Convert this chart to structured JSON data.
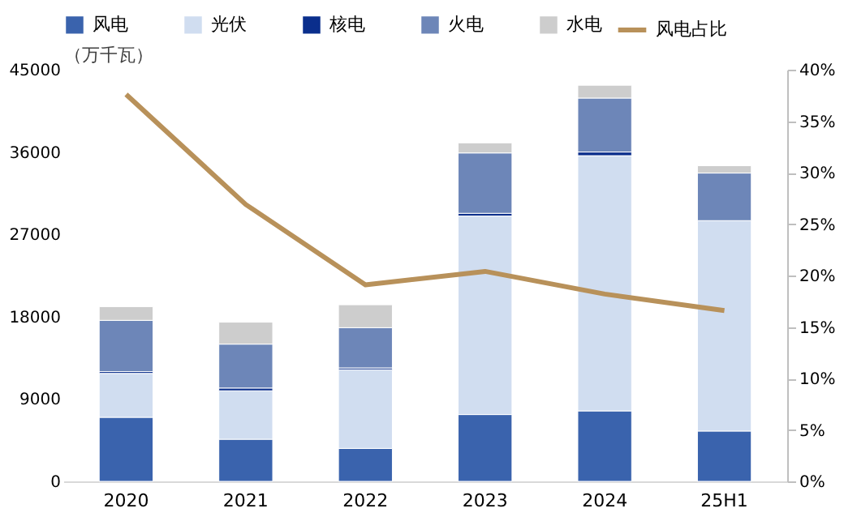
{
  "chart_data": {
    "type": "bar",
    "stacked": true,
    "ylabel": "（万千瓦）",
    "categories": [
      "2020",
      "2021",
      "2022",
      "2023",
      "2024",
      "25H1"
    ],
    "series": [
      {
        "name": "风电",
        "color": "#3a63ad",
        "values": [
          7000,
          4600,
          3600,
          7300,
          7700,
          5500
        ]
      },
      {
        "name": "光伏",
        "color": "#d0ddf0",
        "values": [
          4800,
          5300,
          8600,
          21700,
          27900,
          23000
        ]
      },
      {
        "name": "核电",
        "color": "#0a2e8c",
        "values": [
          200,
          300,
          200,
          300,
          400,
          0
        ]
      },
      {
        "name": "火电",
        "color": "#6d86b8",
        "values": [
          5600,
          4800,
          4400,
          6600,
          5900,
          5200
        ]
      },
      {
        "name": "水电",
        "color": "#cdcdcd",
        "values": [
          1500,
          2400,
          2500,
          1100,
          1400,
          800
        ]
      },
      {
        "name": "风电占比",
        "type": "line",
        "axis": "y2",
        "color": "#b8915a",
        "values": [
          37.6,
          26.9,
          19.1,
          20.4,
          18.2,
          16.6
        ]
      }
    ],
    "ylim": [
      0,
      45000
    ],
    "yticks": [
      0,
      9000,
      18000,
      27000,
      36000,
      45000
    ],
    "y2lim": [
      0,
      40
    ],
    "y2ticks": [
      {
        "value": 0,
        "label": "0%"
      },
      {
        "value": 5,
        "label": "5%"
      },
      {
        "value": 10,
        "label": "10%"
      },
      {
        "value": 15,
        "label": "15%"
      },
      {
        "value": 20,
        "label": "20%"
      },
      {
        "value": 25,
        "label": "25%"
      },
      {
        "value": 30,
        "label": "30%"
      },
      {
        "value": 35,
        "label": "35%"
      },
      {
        "value": 40,
        "label": "40%"
      }
    ],
    "grid": false,
    "legend": "top",
    "marker": "none"
  }
}
